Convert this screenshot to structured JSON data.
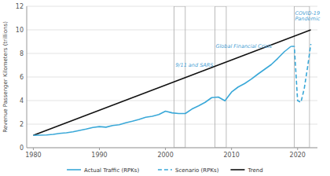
{
  "chart_data": {
    "type": "line",
    "y_label": "Revenue Passenger Kilometers (trillions)",
    "xlim": [
      1979,
      2023
    ],
    "ylim": [
      0,
      12
    ],
    "xticks": [
      1980,
      1990,
      2000,
      2010,
      2020
    ],
    "yticks": [
      0,
      2,
      4,
      6,
      8,
      10,
      12
    ],
    "grid": true,
    "legend": "bottom",
    "series": [
      {
        "name": "Actual Traffic (RPKs)",
        "color": "#3aa8d8",
        "line_style": "solid",
        "x": [
          1980,
          1981,
          1982,
          1983,
          1984,
          1985,
          1986,
          1987,
          1988,
          1989,
          1990,
          1991,
          1992,
          1993,
          1994,
          1995,
          1996,
          1997,
          1998,
          1999,
          2000,
          2001,
          2002,
          2003,
          2004,
          2005,
          2006,
          2007,
          2008,
          2009,
          2010,
          2011,
          2012,
          2013,
          2014,
          2015,
          2016,
          2017,
          2018,
          2019
        ],
        "values": [
          1.05,
          1.07,
          1.08,
          1.13,
          1.22,
          1.27,
          1.35,
          1.47,
          1.58,
          1.72,
          1.79,
          1.74,
          1.88,
          1.95,
          2.12,
          2.25,
          2.4,
          2.58,
          2.67,
          2.82,
          3.1,
          2.96,
          2.9,
          2.9,
          3.28,
          3.55,
          3.85,
          4.25,
          4.3,
          3.98,
          4.72,
          5.15,
          5.45,
          5.82,
          6.25,
          6.65,
          7.05,
          7.58,
          8.15,
          8.6
        ]
      },
      {
        "name": "Scenario (RPKs)",
        "color": "#3aa8d8",
        "line_style": "dashed",
        "x": [
          2019.0,
          2019.5,
          2020.0,
          2020.5,
          2021.0,
          2021.5,
          2022.0
        ],
        "values": [
          8.6,
          8.6,
          4.0,
          3.85,
          5.0,
          6.8,
          8.8
        ]
      },
      {
        "name": "Trend",
        "color": "#111111",
        "line_style": "solid",
        "x": [
          1980,
          2022
        ],
        "values": [
          1.05,
          10.0
        ]
      }
    ],
    "regions": [
      {
        "x1": 2001.3,
        "x2": 2003.0,
        "y1": 0,
        "y2": 12,
        "color": "#aaaaaa"
      },
      {
        "x1": 2007.5,
        "x2": 2009.2,
        "y1": 0,
        "y2": 12,
        "color": "#aaaaaa"
      },
      {
        "x1": 2019.5,
        "x2": 2021.8,
        "y1": 0,
        "y2": 12,
        "color": "#aaaaaa"
      }
    ],
    "annotations": [
      {
        "text": "9/11 and SARS",
        "x": 2001.5,
        "y": 7.3,
        "color": "#4a9fd4"
      },
      {
        "text": "Global Financial Crisis",
        "x": 2007.6,
        "y": 8.9,
        "color": "#4a9fd4"
      },
      {
        "text": "COVID-19\nPandemic",
        "x": 2019.6,
        "y": 11.7,
        "color": "#4a9fd4"
      }
    ]
  }
}
